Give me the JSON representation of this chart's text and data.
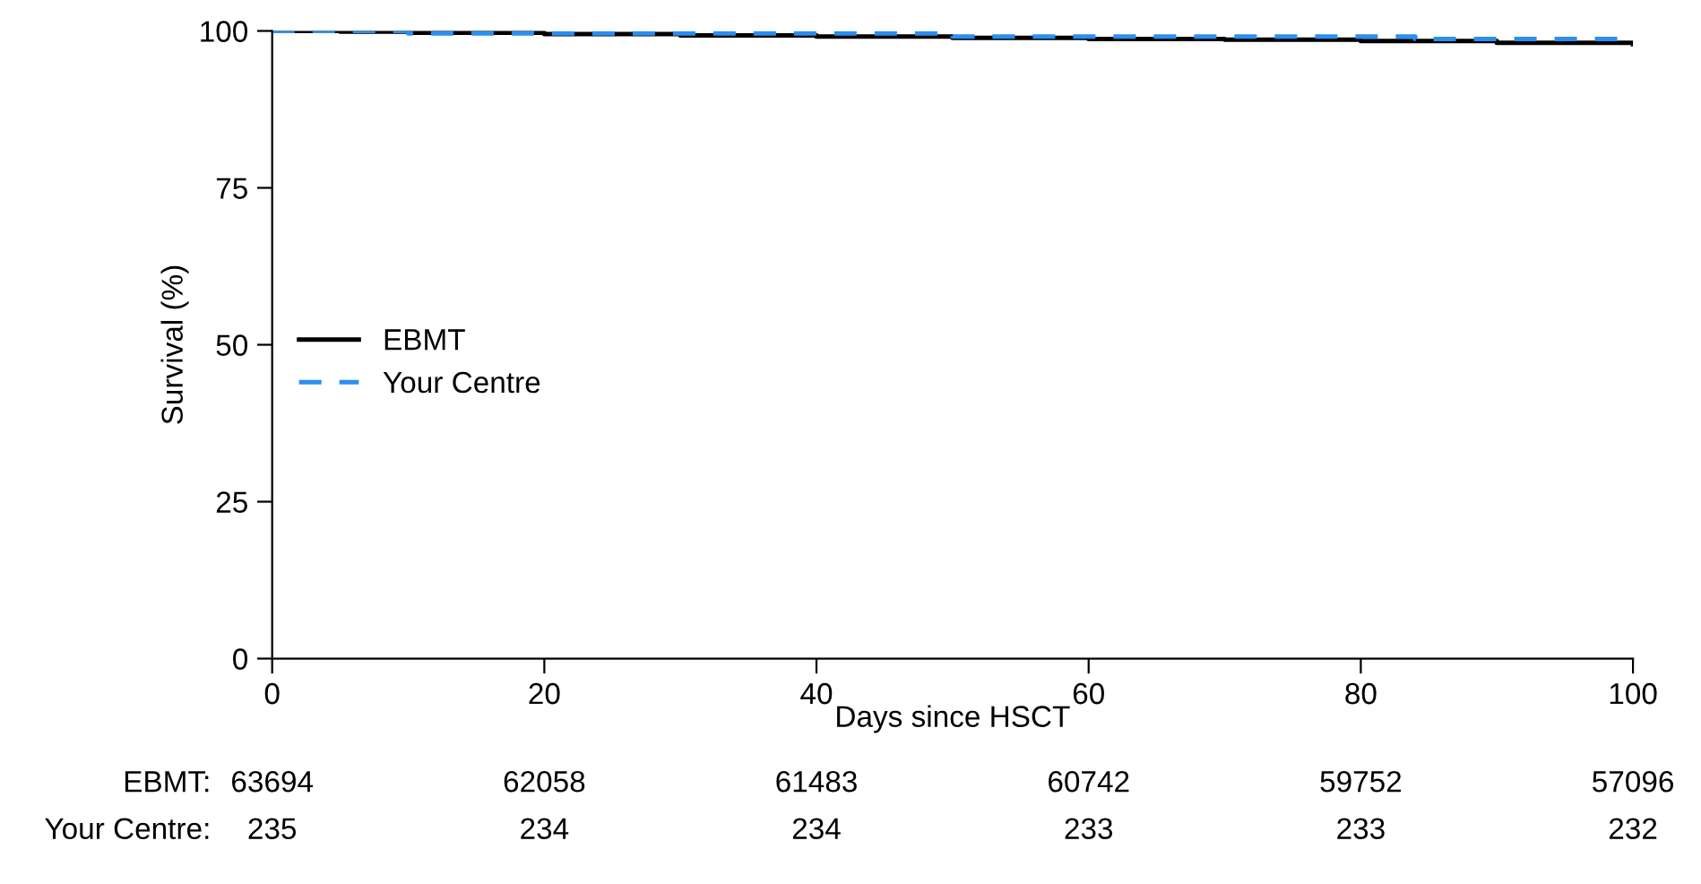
{
  "chart_data": {
    "type": "step",
    "xlabel": "Days since HSCT",
    "ylabel": "Survival (%)",
    "xlim": [
      0,
      100
    ],
    "xticks": [
      0,
      20,
      40,
      60,
      80,
      100
    ],
    "ylim": [
      0,
      100
    ],
    "yticks": [
      0,
      25,
      50,
      75,
      100
    ],
    "grid": false,
    "legend": "left",
    "series": [
      {
        "name": "EBMT",
        "color": "#000000",
        "line_style": "solid",
        "x": [
          0,
          5,
          10,
          20,
          30,
          40,
          50,
          60,
          70,
          80,
          90,
          100
        ],
        "values": [
          100,
          99.9,
          99.7,
          99.5,
          99.3,
          99.1,
          98.9,
          98.7,
          98.6,
          98.4,
          98.1,
          97.9
        ]
      },
      {
        "name": "Your Centre",
        "color": "#2b8ff0",
        "line_style": "dashed",
        "x": [
          0,
          10,
          50,
          84,
          100
        ],
        "values": [
          100,
          99.6,
          99.1,
          98.7,
          98.7
        ]
      }
    ],
    "annotations": [
      "EBMT:",
      "63694",
      "62058",
      "61483",
      "60742",
      "59752",
      "57096",
      "Your Centre:",
      "235",
      "234",
      "234",
      "233",
      "233",
      "232"
    ]
  }
}
